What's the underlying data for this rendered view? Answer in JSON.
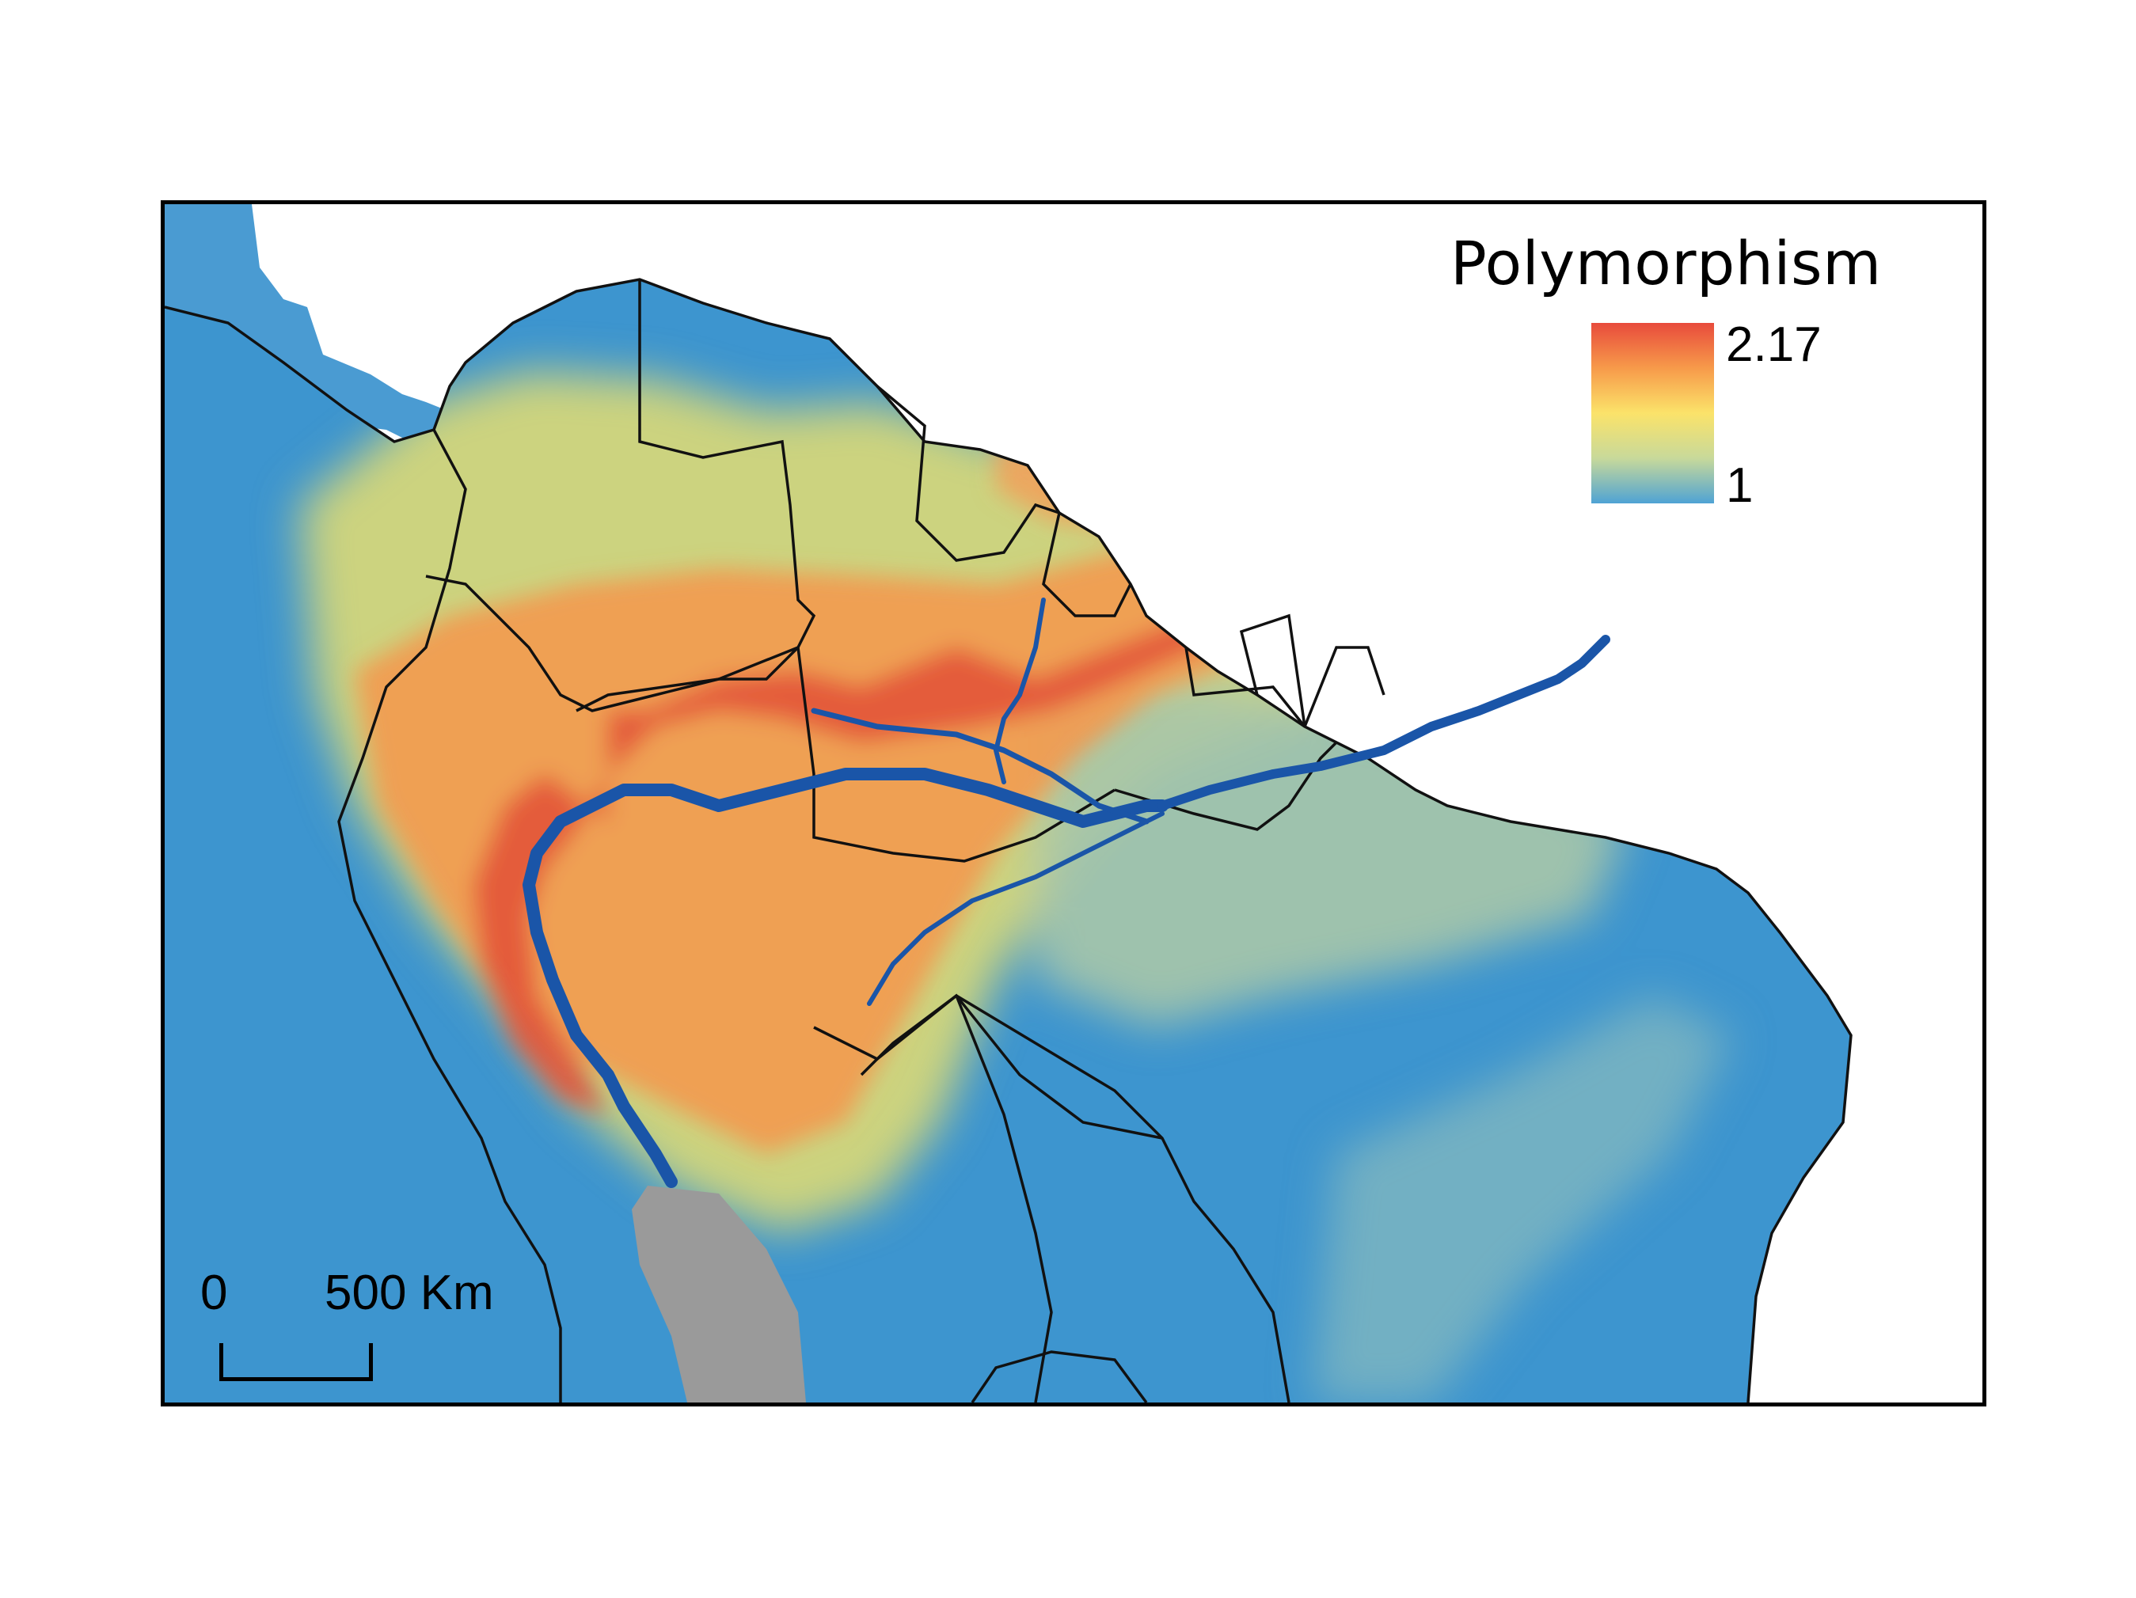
{
  "legend": {
    "title": "Polymorphism",
    "max_label": "2.17",
    "min_label": "1",
    "max_value": 2.17,
    "min_value": 1,
    "color_ramp": [
      "#e84b3c",
      "#f79a4a",
      "#fbe36a",
      "#c8d99a",
      "#4fa3d4"
    ]
  },
  "scale_bar": {
    "zero_label": "0",
    "distance_label": "500 Km"
  },
  "colors": {
    "land_low": "#3d95cf",
    "land_mid": "#d8d777",
    "land_high": "#e55a3b",
    "river": "#1a55a8",
    "borders": "#111111",
    "andes_outside_range": "#9a9a9a"
  }
}
